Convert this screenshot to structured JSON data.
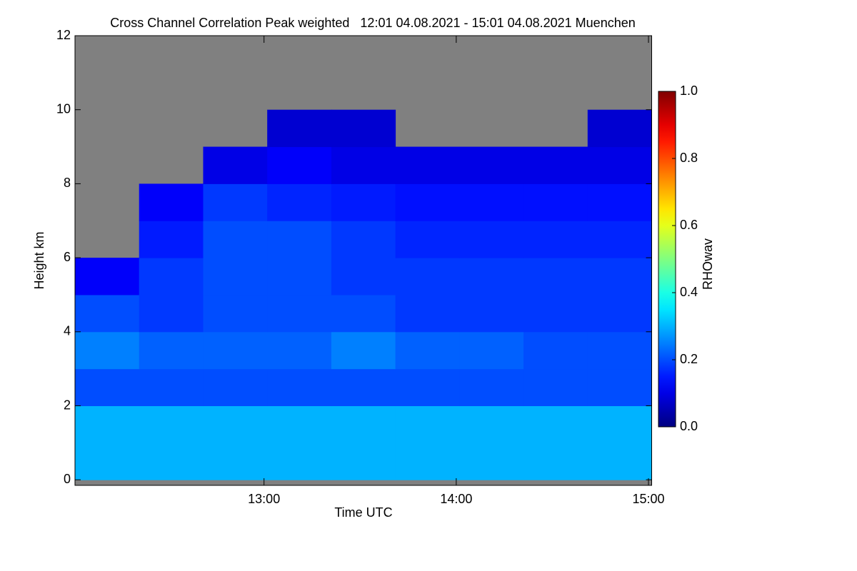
{
  "chart_data": {
    "type": "heatmap",
    "title": "Cross Channel Correlation Peak weighted   12:01 04.08.2021 - 15:01 04.08.2021 Muenchen",
    "x_label": "Time UTC",
    "y_label": "Height km",
    "colorbar_label": "RHOwav",
    "xlim": [
      721,
      901
    ],
    "xticks": [
      {
        "value": 780,
        "label": "13:00"
      },
      {
        "value": 840,
        "label": "14:00"
      },
      {
        "value": 900,
        "label": "15:00"
      }
    ],
    "ylim": [
      -0.15,
      12
    ],
    "yticks": [
      0,
      2,
      4,
      6,
      8,
      10,
      12
    ],
    "zlim": [
      0,
      1
    ],
    "zticks": [
      {
        "value": 0,
        "label": "0.0"
      },
      0.2,
      0.4,
      0.6,
      0.8,
      {
        "value": 1,
        "label": "1.0"
      }
    ],
    "colormap": "jet",
    "missing_color": "#808080",
    "x_edges": [
      721,
      741,
      761,
      781,
      801,
      821,
      841,
      861,
      881,
      901
    ],
    "y_edges": [
      0,
      1,
      2,
      3,
      4,
      5,
      6,
      7,
      8,
      9,
      10,
      11,
      12
    ],
    "z": [
      [
        0.3,
        0.3,
        0.3,
        0.3,
        0.3,
        0.3,
        0.3,
        0.3,
        0.3
      ],
      [
        0.3,
        0.3,
        0.3,
        0.3,
        0.3,
        0.3,
        0.3,
        0.3,
        0.3
      ],
      [
        0.2,
        0.2,
        0.2,
        0.2,
        0.2,
        0.2,
        0.2,
        0.2,
        0.2
      ],
      [
        0.25,
        0.22,
        0.22,
        0.22,
        0.25,
        0.22,
        0.22,
        0.2,
        0.2
      ],
      [
        0.2,
        0.18,
        0.2,
        0.2,
        0.2,
        0.18,
        0.18,
        0.18,
        0.18
      ],
      [
        0.12,
        0.18,
        0.2,
        0.2,
        0.18,
        0.18,
        0.18,
        0.18,
        0.18
      ],
      [
        null,
        0.15,
        0.2,
        0.2,
        0.18,
        0.16,
        0.16,
        0.16,
        0.16
      ],
      [
        null,
        0.12,
        0.18,
        0.16,
        0.15,
        0.14,
        0.14,
        0.14,
        0.14
      ],
      [
        null,
        null,
        0.1,
        0.12,
        0.1,
        0.1,
        0.1,
        0.1,
        0.1
      ],
      [
        null,
        null,
        null,
        0.08,
        0.08,
        null,
        null,
        null,
        0.08
      ],
      [
        null,
        null,
        null,
        null,
        null,
        null,
        null,
        null,
        null
      ],
      [
        null,
        null,
        null,
        null,
        null,
        null,
        null,
        null,
        null
      ]
    ]
  }
}
